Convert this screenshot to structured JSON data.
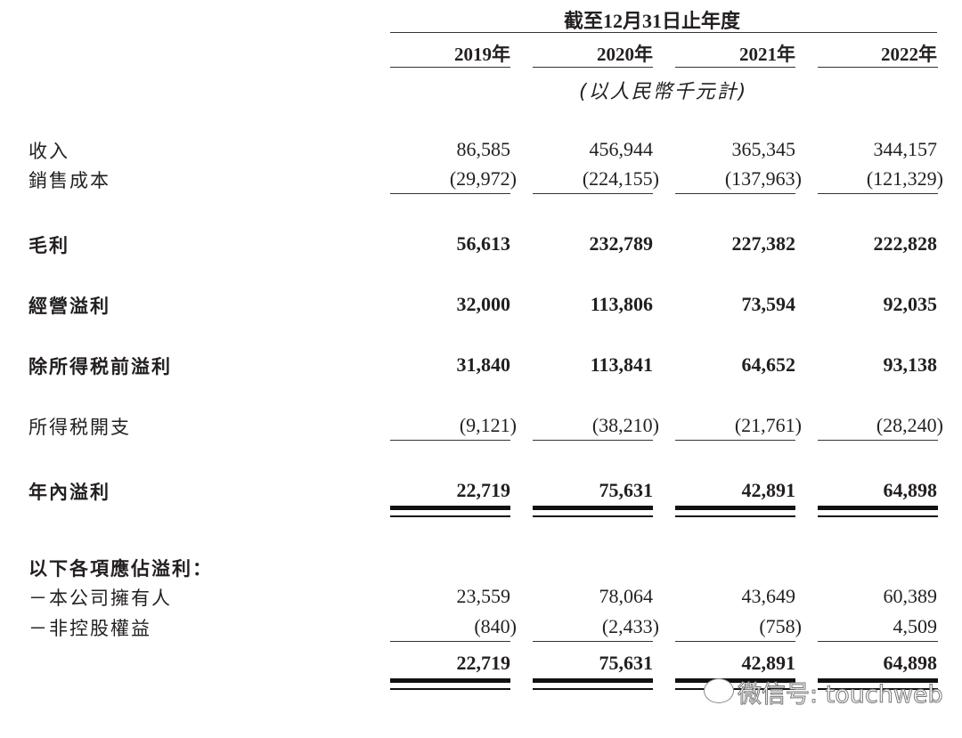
{
  "header": {
    "period": "截至12月31日止年度",
    "years": [
      "2019年",
      "2020年",
      "2021年",
      "2022年"
    ],
    "unit": "(以人民幣千元計)"
  },
  "rows": [
    {
      "label": "收入",
      "values": [
        "86,585",
        "456,944",
        "365,345",
        "344,157"
      ]
    },
    {
      "label": "銷售成本",
      "values": [
        "(29,972)",
        "(224,155)",
        "(137,963)",
        "(121,329)"
      ]
    },
    {
      "label": "毛利",
      "values": [
        "56,613",
        "232,789",
        "227,382",
        "222,828"
      ]
    },
    {
      "label": "經營溢利",
      "values": [
        "32,000",
        "113,806",
        "73,594",
        "92,035"
      ]
    },
    {
      "label": "除所得税前溢利",
      "values": [
        "31,840",
        "113,841",
        "64,652",
        "93,138"
      ]
    },
    {
      "label": "所得税開支",
      "values": [
        "(9,121)",
        "(38,210)",
        "(21,761)",
        "(28,240)"
      ]
    },
    {
      "label": "年內溢利",
      "values": [
        "22,719",
        "75,631",
        "42,891",
        "64,898"
      ]
    },
    {
      "label": "以下各項應佔溢利：",
      "values": []
    },
    {
      "label": "－本公司擁有人",
      "values": [
        "23,559",
        "78,064",
        "43,649",
        "60,389"
      ]
    },
    {
      "label": "－非控股權益",
      "values": [
        "(840)",
        "(2,433)",
        "(758)",
        "4,509"
      ]
    },
    {
      "label": "",
      "values": [
        "22,719",
        "75,631",
        "42,891",
        "64,898"
      ]
    }
  ],
  "watermark": "微信号: touchweb"
}
